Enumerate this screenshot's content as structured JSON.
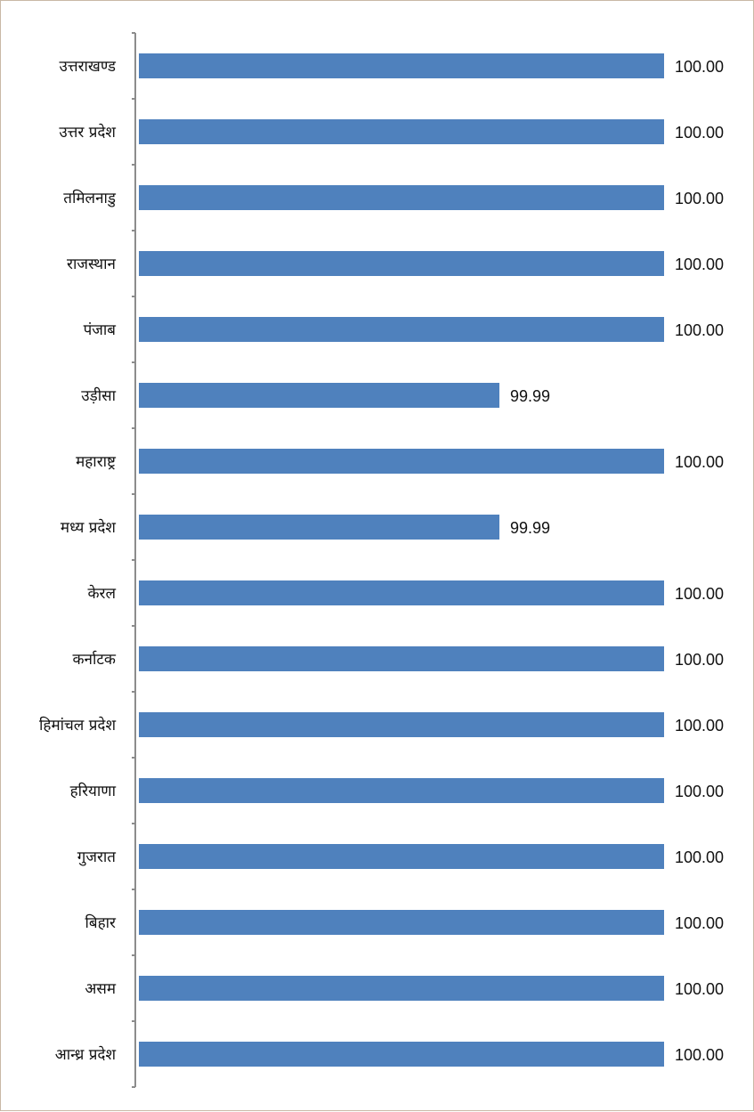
{
  "chart_data": {
    "type": "bar",
    "orientation": "horizontal",
    "categories": [
      "उत्तराखण्ड",
      "उत्तर प्रदेश",
      "तमिलनाडु",
      "राजस्थान",
      "पंजाब",
      "उड़ीसा",
      "महाराष्ट्र",
      "मध्य प्रदेश",
      "केरल",
      "कर्नाटक",
      "हिमांचल प्रदेश",
      "हरियाणा",
      "गुजरात",
      "बिहार",
      "असम",
      "आन्ध्र प्रदेश"
    ],
    "values": [
      100.0,
      100.0,
      100.0,
      100.0,
      100.0,
      99.99,
      100.0,
      99.99,
      100.0,
      100.0,
      100.0,
      100.0,
      100.0,
      100.0,
      100.0,
      100.0
    ],
    "data_labels": [
      "100.00",
      "100.00",
      "100.00",
      "100.00",
      "100.00",
      "99.99",
      "100.00",
      "99.99",
      "100.00",
      "100.00",
      "100.00",
      "100.00",
      "100.00",
      "100.00",
      "100.00",
      "100.00"
    ],
    "xlim": [
      99.98,
      100.0
    ],
    "title": "",
    "xlabel": "",
    "ylabel": "",
    "grid": false,
    "legend": "none",
    "bar_color": "#4f81bd"
  }
}
